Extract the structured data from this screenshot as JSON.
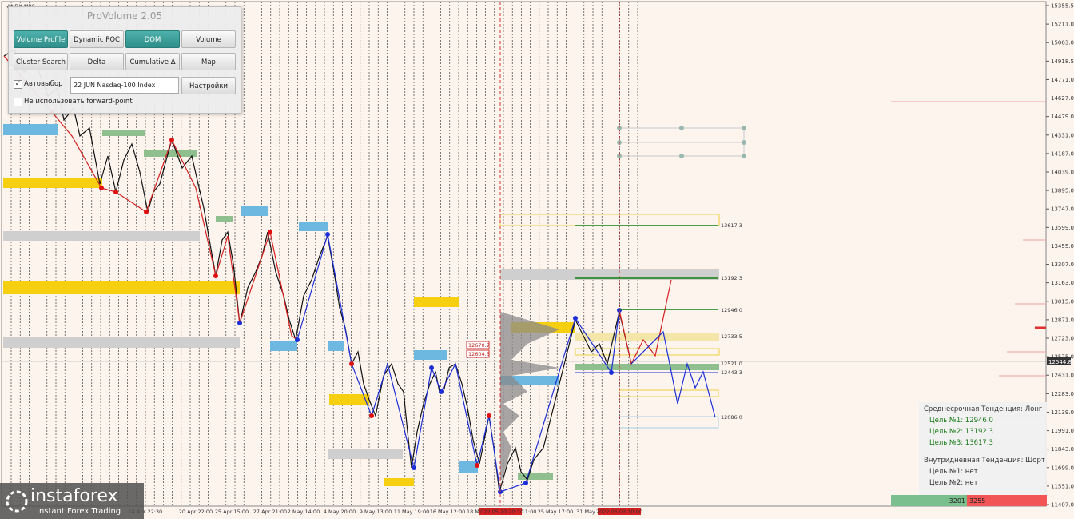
{
  "window": {
    "symbol": "#NDX,M30"
  },
  "panel": {
    "title": "ProVolume 2.05",
    "buttons": [
      "Volume Profile",
      "Dynamic POC",
      "DOM",
      "Volume",
      "Cluster Search",
      "Delta",
      "Cumulative Δ",
      "Map"
    ],
    "auto_select": "Автовыбор",
    "instrument": "22 JUN Nasdaq-100 Index",
    "settings": "Настройки",
    "no_forward": "Не использовать forward-point"
  },
  "price_axis": {
    "labels": [
      "15355.5",
      "15211.0",
      "15063.0",
      "14918.5",
      "14771.0",
      "14627.0",
      "14479.0",
      "14331.0",
      "14187.0",
      "14039.0",
      "13895.0",
      "13747.0",
      "13599.0",
      "13455.0",
      "13307.0",
      "13163.0",
      "13015.0",
      "12871.0",
      "12723.0",
      "12575.0",
      "12431.0",
      "12283.0",
      "12139.0",
      "11991.0",
      "11843.0",
      "11699.0",
      "11551.0",
      "11407.0"
    ],
    "current": "12544.8"
  },
  "time_axis": {
    "labels": [
      "14 Apr 22:30",
      "20 Apr 22:00",
      "25 Apr 15:00",
      "27 Apr 21:00",
      "2 May 14:00",
      "4 May 20:00",
      "9 May 13:00",
      "11 May 19:00",
      "16 May 12:00",
      "18 M",
      "2022.05.20 20:30",
      "11:00",
      "25 May 17:00",
      "31 May",
      "2022.06.03 10:00"
    ]
  },
  "levels": [
    "13617.3",
    "13192.3",
    "12946.0",
    "12733.5",
    "12521.0",
    "12443.3",
    "12086.0"
  ],
  "boxes": [
    "12670.7",
    "12604.3"
  ],
  "info": {
    "lines": [
      "Среднесрочная Тенденция: Лонг",
      "Цель №1: 12946.0",
      "Цель №2: 13192.3",
      "Цель №3: 13617.3",
      "Внутридневная Тенденция: Шорт",
      "Цель №1: нет",
      "Цель №2: нет"
    ]
  },
  "volume_bar": {
    "buy": "3201",
    "sell": "3255"
  },
  "logo": {
    "name": "instaforex",
    "tagline": "Instant Forex Trading"
  }
}
